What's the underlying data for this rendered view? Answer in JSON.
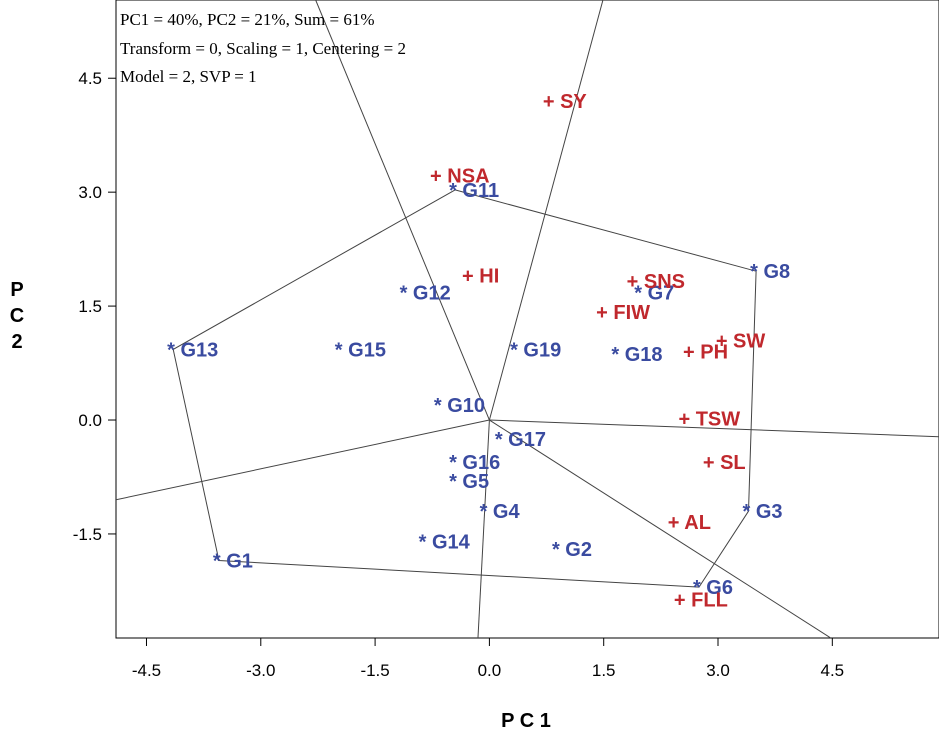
{
  "chart_data": {
    "type": "scatter",
    "title": "",
    "annotations": [
      "PC1 = 40%, PC2 = 21%, Sum = 61%",
      "Transform = 0, Scaling = 1, Centering = 2",
      "Model = 2, SVP = 1"
    ],
    "xlabel": "P C 1",
    "ylabel": "P C 2",
    "xlim": [
      -4.9,
      5.9
    ],
    "ylim": [
      -2.87,
      5.53
    ],
    "xticks": [
      -4.5,
      -3.0,
      -1.5,
      0.0,
      1.5,
      3.0,
      4.5
    ],
    "xtick_labels": [
      "-4.5",
      "-3.0",
      "-1.5",
      "0.0",
      "1.5",
      "3.0",
      "4.5"
    ],
    "yticks": [
      -1.5,
      0.0,
      1.5,
      3.0,
      4.5
    ],
    "ytick_labels": [
      "-1.5",
      "0.0",
      "1.5",
      "3.0",
      "4.5"
    ],
    "grid": false,
    "colors": {
      "genotype": "#3a4ba0",
      "trait": "#c0282d",
      "lines": "#444444"
    },
    "series": [
      {
        "marker": "*",
        "points": [
          {
            "label": "G1",
            "x": -3.55,
            "y": -1.85
          },
          {
            "label": "G2",
            "x": 0.9,
            "y": -1.7
          },
          {
            "label": "G3",
            "x": 3.4,
            "y": -1.2
          },
          {
            "label": "G4",
            "x": -0.05,
            "y": -1.2
          },
          {
            "label": "G5",
            "x": -0.45,
            "y": -0.8
          },
          {
            "label": "G6",
            "x": 2.75,
            "y": -2.2
          },
          {
            "label": "G7",
            "x": 1.98,
            "y": 1.68
          },
          {
            "label": "G8",
            "x": 3.5,
            "y": 1.96
          },
          {
            "label": "G10",
            "x": -0.65,
            "y": 0.2
          },
          {
            "label": "G11",
            "x": -0.45,
            "y": 3.03
          },
          {
            "label": "G12",
            "x": -1.1,
            "y": 1.68
          },
          {
            "label": "G13",
            "x": -4.15,
            "y": 0.93
          },
          {
            "label": "G14",
            "x": -0.85,
            "y": -1.6
          },
          {
            "label": "G15",
            "x": -1.95,
            "y": 0.93
          },
          {
            "label": "G16",
            "x": -0.45,
            "y": -0.55
          },
          {
            "label": "G17",
            "x": 0.15,
            "y": -0.25
          },
          {
            "label": "G18",
            "x": 1.68,
            "y": 0.87
          },
          {
            "label": "G19",
            "x": 0.35,
            "y": 0.93
          }
        ]
      },
      {
        "marker": "+",
        "points": [
          {
            "label": "SY",
            "x": 0.78,
            "y": 4.2
          },
          {
            "label": "NSA",
            "x": -0.7,
            "y": 3.22
          },
          {
            "label": "HI",
            "x": -0.28,
            "y": 1.9
          },
          {
            "label": "SNS",
            "x": 1.88,
            "y": 1.83
          },
          {
            "label": "FIW",
            "x": 1.48,
            "y": 1.42
          },
          {
            "label": "SW",
            "x": 3.05,
            "y": 1.05
          },
          {
            "label": "PH",
            "x": 2.62,
            "y": 0.9
          },
          {
            "label": "TSW",
            "x": 2.56,
            "y": 0.02
          },
          {
            "label": "SL",
            "x": 2.88,
            "y": -0.55
          },
          {
            "label": "AL",
            "x": 2.42,
            "y": -1.34
          },
          {
            "label": "FLL",
            "x": 2.5,
            "y": -2.36
          }
        ]
      }
    ],
    "hull": [
      [
        -0.45,
        3.03
      ],
      [
        3.5,
        1.96
      ],
      [
        3.4,
        -1.2
      ],
      [
        2.75,
        -2.2
      ],
      [
        -3.55,
        -1.85
      ],
      [
        -4.15,
        0.93
      ]
    ],
    "rays": [
      [
        -2.28,
        5.53
      ],
      [
        1.49,
        5.53
      ],
      [
        5.9,
        -0.22
      ],
      [
        4.48,
        -2.87
      ],
      [
        -0.15,
        -2.87
      ],
      [
        -4.9,
        -1.05
      ]
    ]
  }
}
